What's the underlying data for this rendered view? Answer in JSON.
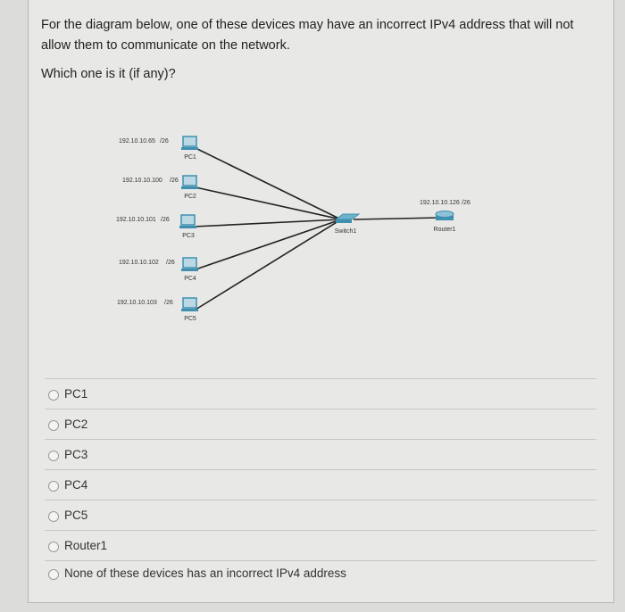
{
  "question": {
    "text": "For the diagram below, one of these devices may have an incorrect IPv4 address that will not allow them to communicate on the network.",
    "prompt": "Which one is it (if any)?"
  },
  "diagram": {
    "switch": {
      "label": "Switch1"
    },
    "router": {
      "label": "Router1",
      "ip": "192.10.10.126",
      "mask": "/26"
    },
    "pcs": [
      {
        "label": "PC1",
        "ip": "192.10.10.65",
        "mask": "/26"
      },
      {
        "label": "PC2",
        "ip": "192.10.10.100",
        "mask": "/26"
      },
      {
        "label": "PC3",
        "ip": "192.10.10.101",
        "mask": "/26"
      },
      {
        "label": "PC4",
        "ip": "192.10.10.102",
        "mask": "/26"
      },
      {
        "label": "PC5",
        "ip": "192.10.10.103",
        "mask": "/26"
      }
    ],
    "colors": {
      "device": "#3f8fb0",
      "link": "#222222"
    }
  },
  "options": [
    {
      "label": "PC1"
    },
    {
      "label": "PC2"
    },
    {
      "label": "PC3"
    },
    {
      "label": "PC4"
    },
    {
      "label": "PC5"
    },
    {
      "label": "Router1"
    },
    {
      "label": "None of these devices has an incorrect IPv4 address"
    }
  ]
}
